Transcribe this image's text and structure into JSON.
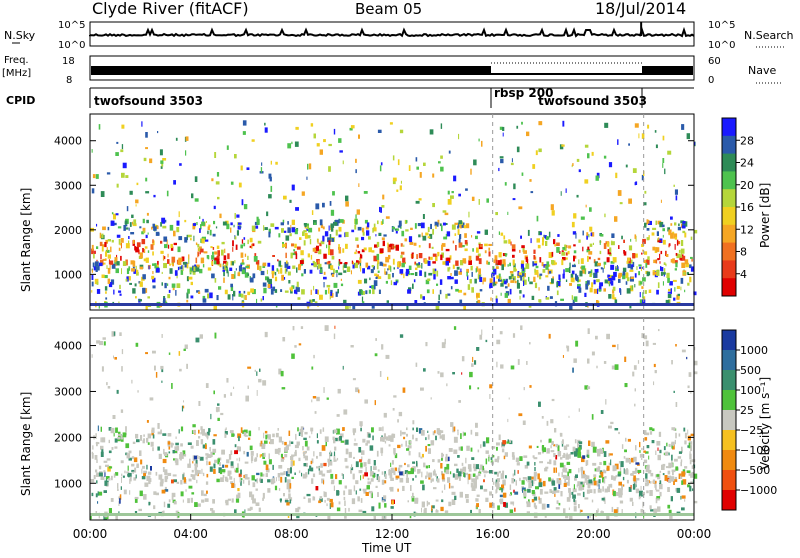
{
  "header": {
    "station": "Clyde River (fitACF)",
    "beam": "Beam 05",
    "date": "18/Jul/2014"
  },
  "strips": {
    "nsky_label": "N.Sky",
    "nsky_ticks": [
      "10^5",
      "10^0"
    ],
    "nsearch_label": "N.Search",
    "freq_label": "Freq.",
    "freq_unit": "[MHz]",
    "freq_ticks": [
      "18",
      "8"
    ],
    "nave_label": "Nave",
    "nave_ticks": [
      "60",
      "0"
    ],
    "cpid_label": "CPID"
  },
  "cpid_segments": [
    {
      "label": "twofsound 3503",
      "start_hour": 0,
      "end_hour": 16
    },
    {
      "label": "rbsp 200",
      "start_hour": 16,
      "end_hour": 22
    },
    {
      "label": "twofsound 3503",
      "start_hour": 16,
      "end_hour": 22
    }
  ],
  "chart_data": [
    {
      "type": "heatmap",
      "name": "power",
      "ylabel": "Slant Range [km]",
      "xlabel": "Time UT",
      "xticks": [
        "00:00",
        "04:00",
        "08:00",
        "12:00",
        "16:00",
        "20:00",
        "00:00"
      ],
      "xlim_hours": [
        0,
        24
      ],
      "yticks": [
        1000,
        2000,
        3000,
        4000
      ],
      "ylim": [
        200,
        4600
      ],
      "colorbar": {
        "label": "Power [dB]",
        "ticks": [
          "4",
          "8",
          "12",
          "16",
          "20",
          "24",
          "28"
        ],
        "colors": [
          "#1a1aff",
          "#2a5aaa",
          "#2e8b57",
          "#4ec24e",
          "#b5d63a",
          "#f0d020",
          "#f5a623",
          "#f07020",
          "#e83a1a",
          "#e00000"
        ]
      },
      "dashed_lines_hours": [
        16,
        22
      ]
    },
    {
      "type": "heatmap",
      "name": "velocity",
      "ylabel": "Slant Range [km]",
      "xlabel": "Time UT",
      "xticks": [
        "00:00",
        "04:00",
        "08:00",
        "12:00",
        "16:00",
        "20:00",
        "00:00"
      ],
      "xlim_hours": [
        0,
        24
      ],
      "yticks": [
        1000,
        2000,
        3000,
        4000
      ],
      "ylim": [
        200,
        4600
      ],
      "colorbar": {
        "label": "Velocity [m s⁻¹]",
        "ticks": [
          "1000",
          "500",
          "100",
          "25",
          "−25",
          "−100",
          "−500",
          "−1000"
        ],
        "colors": [
          "#1a3aa0",
          "#2e6e9e",
          "#3a8f6e",
          "#4fc23a",
          "#c8c8c0",
          "#f5c020",
          "#f08a10",
          "#f05010",
          "#e00000"
        ]
      },
      "dashed_lines_hours": [
        16,
        22
      ]
    }
  ],
  "footer": {
    "time_label": "Time UT"
  }
}
